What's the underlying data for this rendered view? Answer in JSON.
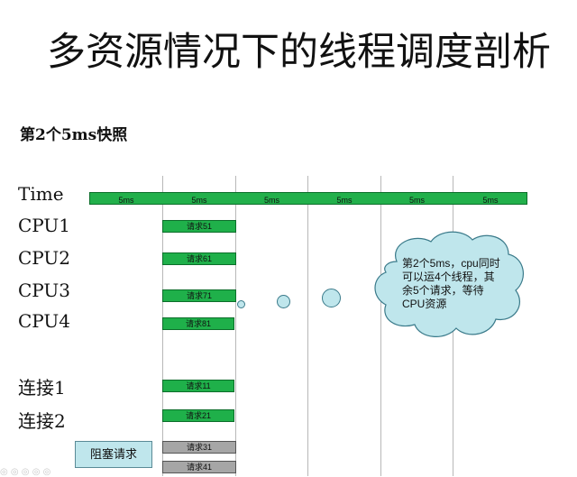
{
  "title": "多资源情况下的线程调度剖析",
  "subtitle": "第2个5ms快照",
  "time_label": "Time",
  "time_segments": [
    "5ms",
    "5ms",
    "5ms",
    "5ms",
    "5ms",
    "5ms"
  ],
  "rows": {
    "cpu1": "CPU1",
    "cpu2": "CPU2",
    "cpu3": "CPU3",
    "cpu4": "CPU4",
    "conn1": "连接1",
    "conn2": "连接2"
  },
  "requests": {
    "r51": "请求51",
    "r61": "请求61",
    "r71": "请求71",
    "r81": "请求81",
    "r11": "请求11",
    "r21": "请求21",
    "r31": "请求31",
    "r41": "请求41"
  },
  "callout": "第2个5ms，cpu同时可以运4个线程，其余5个请求，等待CPU资源",
  "legend_blocked": "阻塞请求",
  "colors": {
    "running": "#1fb04a",
    "blocked": "#a6a6a6",
    "callout_fill": "#bfe6ec"
  }
}
